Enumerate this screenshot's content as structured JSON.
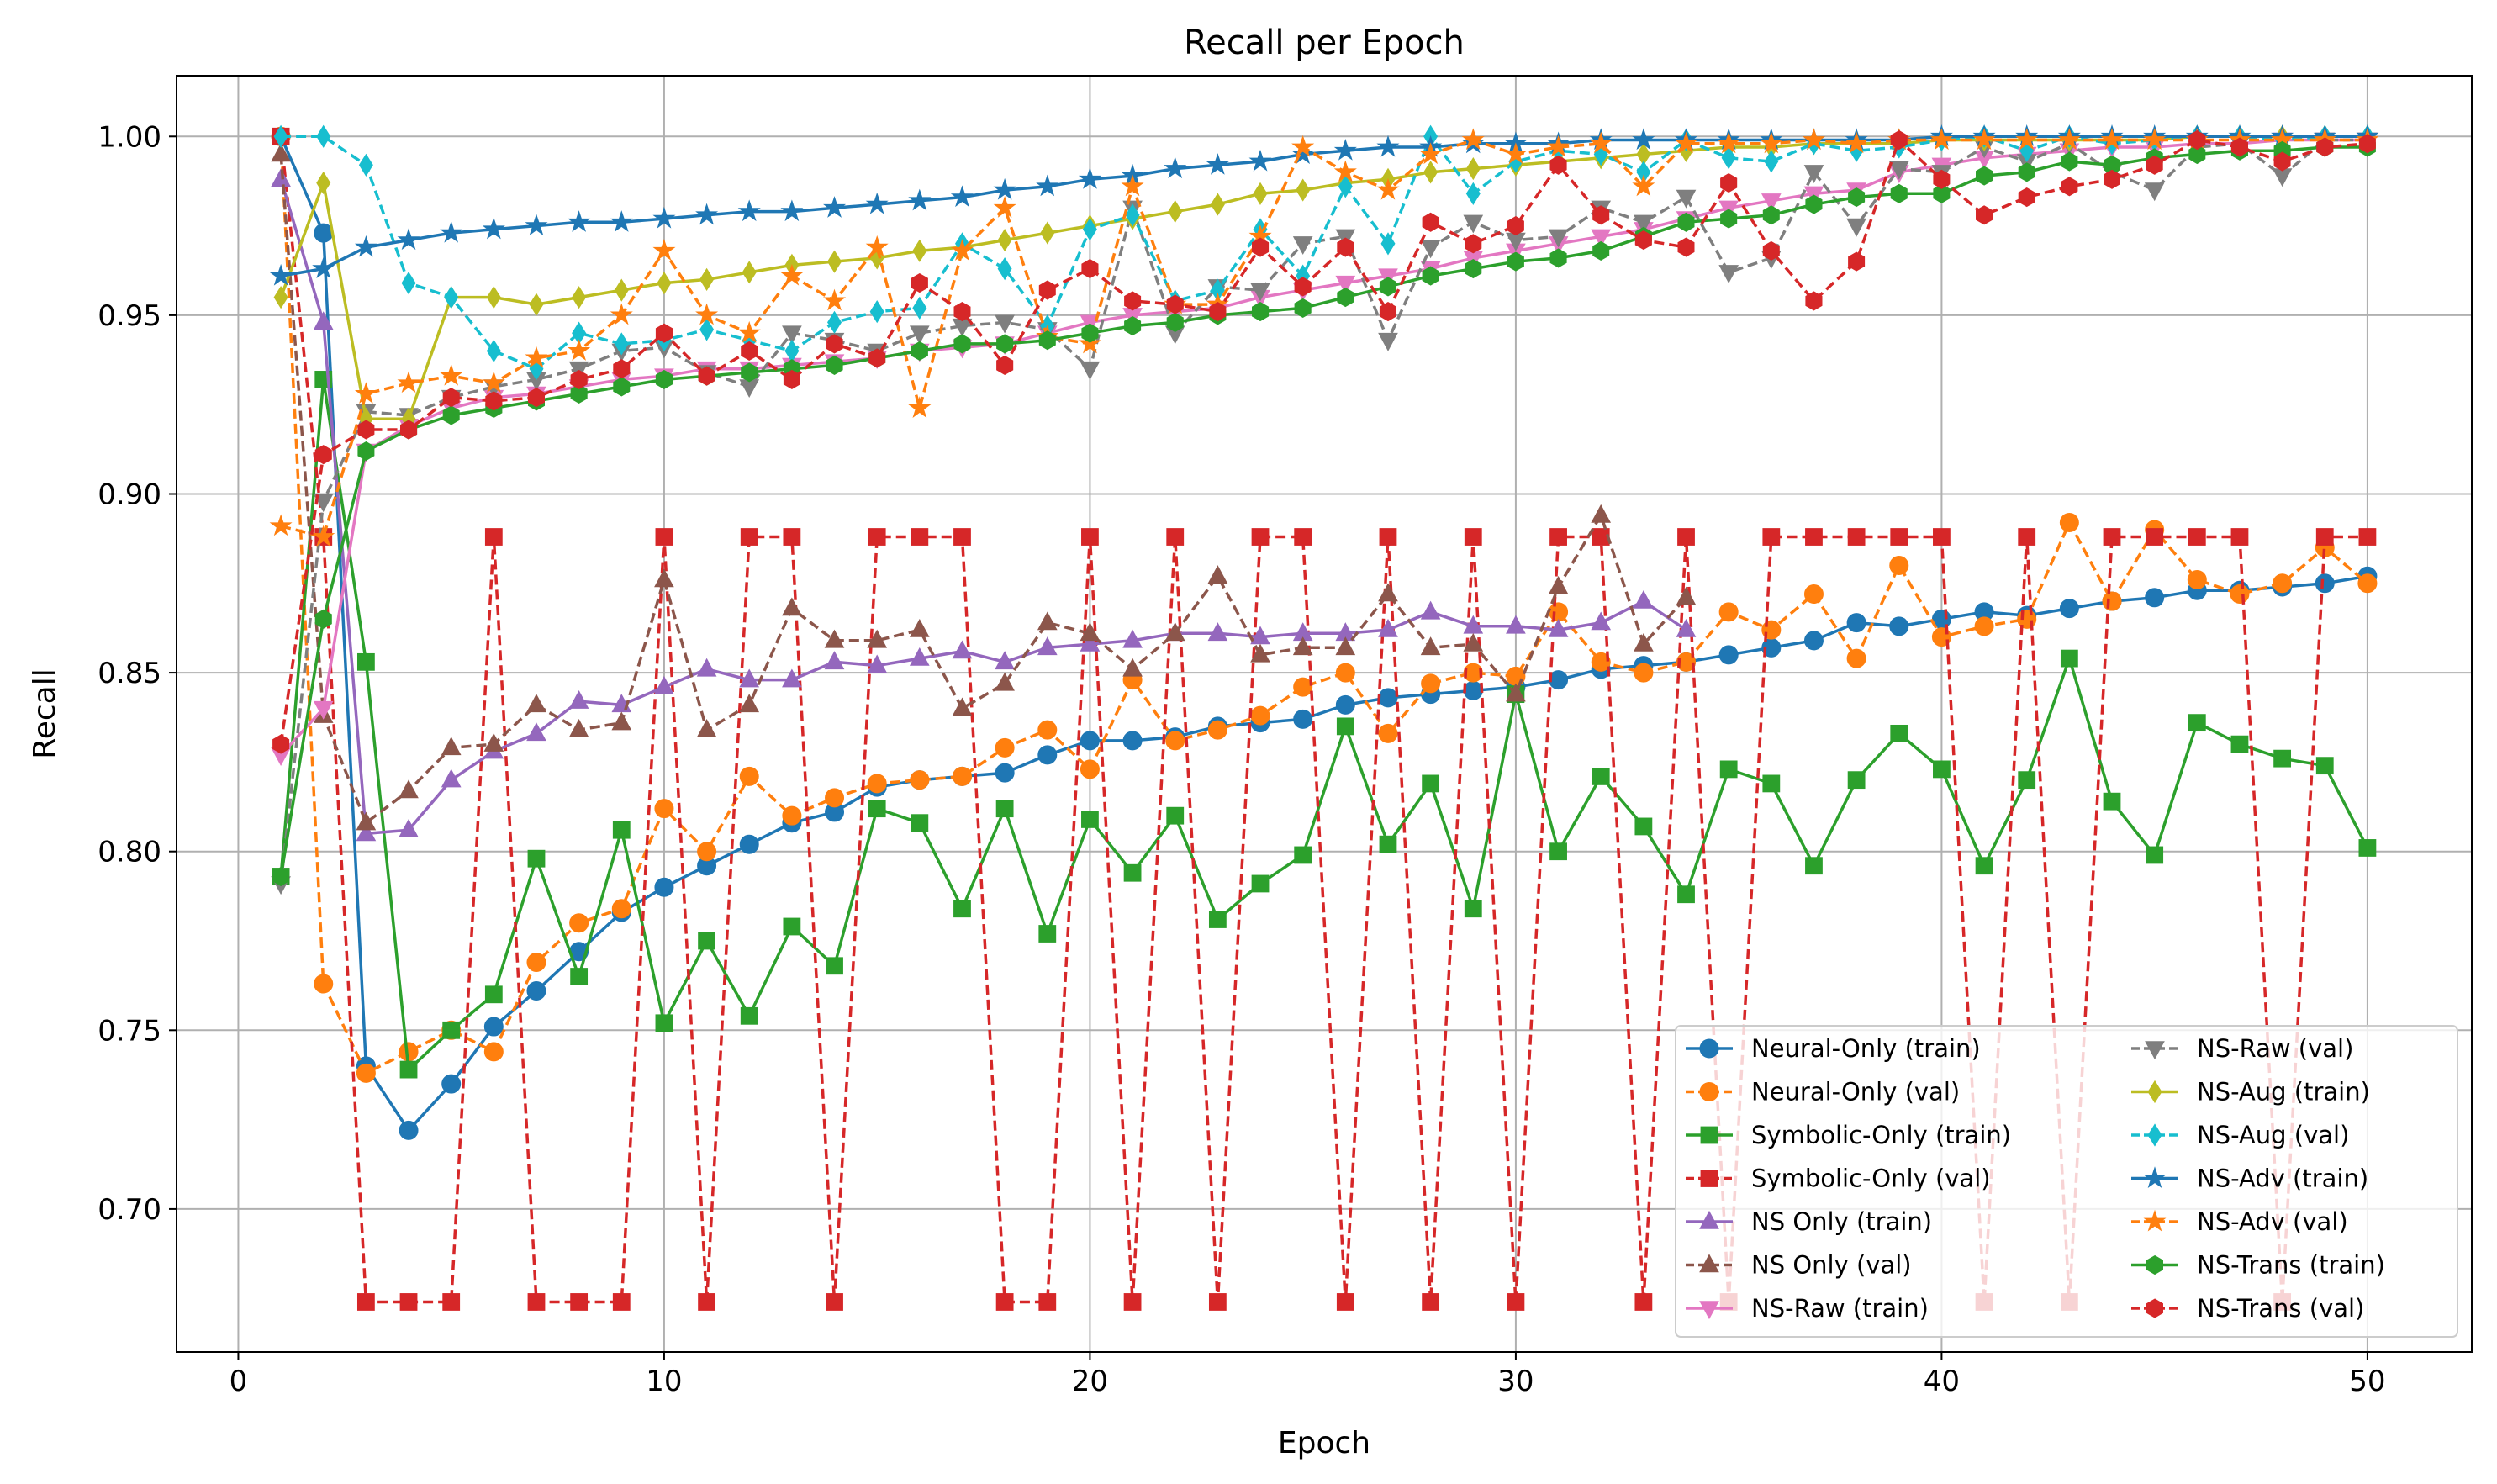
{
  "chart_data": {
    "type": "line",
    "title": "Recall per Epoch",
    "xlabel": "Epoch",
    "ylabel": "Recall",
    "xlim": [
      -1.45,
      52.45
    ],
    "ylim": [
      0.66,
      1.017
    ],
    "xticks": [
      0,
      10,
      20,
      30,
      40,
      50
    ],
    "yticks": [
      0.7,
      0.75,
      0.8,
      0.85,
      0.9,
      0.95,
      1.0
    ],
    "xtick_labels": [
      "0",
      "10",
      "20",
      "30",
      "40",
      "50"
    ],
    "ytick_labels": [
      "0.70",
      "0.75",
      "0.80",
      "0.85",
      "0.90",
      "0.95",
      "1.00"
    ],
    "grid": true,
    "legend_position": "lower right",
    "legend_columns": 2,
    "x": [
      1,
      2,
      3,
      4,
      5,
      6,
      7,
      8,
      9,
      10,
      11,
      12,
      13,
      14,
      15,
      16,
      17,
      18,
      19,
      20,
      21,
      22,
      23,
      24,
      25,
      26,
      27,
      28,
      29,
      30,
      31,
      32,
      33,
      34,
      35,
      36,
      37,
      38,
      39,
      40,
      41,
      42,
      43,
      44,
      45,
      46,
      47,
      48,
      49,
      50
    ],
    "series": [
      {
        "name": "Neural-Only (train)",
        "color": "#1f77b4",
        "dash": "solid",
        "marker": "circle",
        "values": [
          1.0,
          0.973,
          0.74,
          0.722,
          0.735,
          0.751,
          0.761,
          0.772,
          0.783,
          0.79,
          0.796,
          0.802,
          0.808,
          0.811,
          0.818,
          0.82,
          0.821,
          0.822,
          0.827,
          0.831,
          0.831,
          0.832,
          0.835,
          0.836,
          0.837,
          0.841,
          0.843,
          0.844,
          0.845,
          0.846,
          0.848,
          0.851,
          0.852,
          0.853,
          0.855,
          0.857,
          0.859,
          0.864,
          0.863,
          0.865,
          0.867,
          0.866,
          0.868,
          0.87,
          0.871,
          0.873,
          0.873,
          0.874,
          0.875,
          0.877
        ]
      },
      {
        "name": "Neural-Only (val)",
        "color": "#ff7f0e",
        "dash": "dashed",
        "marker": "circle",
        "values": [
          1.0,
          0.763,
          0.738,
          0.744,
          0.75,
          0.744,
          0.769,
          0.78,
          0.784,
          0.812,
          0.8,
          0.821,
          0.81,
          0.815,
          0.819,
          0.82,
          0.821,
          0.829,
          0.834,
          0.823,
          0.848,
          0.831,
          0.834,
          0.838,
          0.846,
          0.85,
          0.833,
          0.847,
          0.85,
          0.849,
          0.867,
          0.853,
          0.85,
          0.853,
          0.867,
          0.862,
          0.872,
          0.854,
          0.88,
          0.86,
          0.863,
          0.865,
          0.892,
          0.87,
          0.89,
          0.876,
          0.872,
          0.875,
          0.885,
          0.875
        ]
      },
      {
        "name": "Symbolic-Only (train)",
        "color": "#2ca02c",
        "dash": "solid",
        "marker": "square",
        "values": [
          0.793,
          0.932,
          0.853,
          0.739,
          0.75,
          0.76,
          0.798,
          0.765,
          0.806,
          0.752,
          0.775,
          0.754,
          0.779,
          0.768,
          0.812,
          0.808,
          0.784,
          0.812,
          0.777,
          0.809,
          0.794,
          0.81,
          0.781,
          0.791,
          0.799,
          0.835,
          0.802,
          0.819,
          0.784,
          0.844,
          0.8,
          0.821,
          0.807,
          0.788,
          0.823,
          0.819,
          0.796,
          0.82,
          0.833,
          0.823,
          0.796,
          0.82,
          0.854,
          0.814,
          0.799,
          0.836,
          0.83,
          0.826,
          0.824,
          0.801
        ]
      },
      {
        "name": "Symbolic-Only (val)",
        "color": "#d62728",
        "dash": "dashed",
        "marker": "square",
        "values": [
          1.0,
          0.888,
          0.674,
          0.674,
          0.674,
          0.888,
          0.674,
          0.674,
          0.674,
          0.888,
          0.674,
          0.888,
          0.888,
          0.674,
          0.888,
          0.888,
          0.888,
          0.674,
          0.674,
          0.888,
          0.674,
          0.888,
          0.674,
          0.888,
          0.888,
          0.674,
          0.888,
          0.674,
          0.888,
          0.674,
          0.888,
          0.888,
          0.674,
          0.888,
          0.674,
          0.888,
          0.888,
          0.888,
          0.888,
          0.888,
          0.674,
          0.888,
          0.674,
          0.888,
          0.888,
          0.888,
          0.888,
          0.674,
          0.888,
          0.888
        ]
      },
      {
        "name": "NS Only (train)",
        "color": "#9467bd",
        "dash": "solid",
        "marker": "triangle-up",
        "values": [
          0.988,
          0.948,
          0.805,
          0.806,
          0.82,
          0.828,
          0.833,
          0.842,
          0.841,
          0.846,
          0.851,
          0.848,
          0.848,
          0.853,
          0.852,
          0.854,
          0.856,
          0.853,
          0.857,
          0.858,
          0.859,
          0.861,
          0.861,
          0.86,
          0.861,
          0.861,
          0.862,
          0.867,
          0.863,
          0.863,
          0.862,
          0.864,
          0.87,
          0.862,
          null,
          null,
          null,
          null,
          null,
          null,
          null,
          null,
          null,
          null,
          null,
          null,
          null,
          null,
          null,
          null
        ]
      },
      {
        "name": "NS Only (val)",
        "color": "#8c564b",
        "dash": "dashed",
        "marker": "triangle-up",
        "values": [
          0.995,
          0.838,
          0.808,
          0.817,
          0.829,
          0.83,
          0.841,
          0.834,
          0.836,
          0.876,
          0.834,
          0.841,
          0.868,
          0.859,
          0.859,
          0.862,
          0.84,
          0.847,
          0.864,
          0.861,
          0.851,
          0.861,
          0.877,
          0.855,
          0.857,
          0.857,
          0.872,
          0.857,
          0.858,
          0.844,
          0.874,
          0.894,
          0.858,
          0.871,
          null,
          null,
          null,
          null,
          null,
          null,
          null,
          null,
          null,
          null,
          null,
          null,
          null,
          null,
          null,
          null
        ]
      },
      {
        "name": "NS-Raw (train)",
        "color": "#e377c2",
        "dash": "solid",
        "marker": "triangle-down",
        "values": [
          0.827,
          0.84,
          0.912,
          0.919,
          0.924,
          0.927,
          0.928,
          0.93,
          0.932,
          0.933,
          0.935,
          0.935,
          0.936,
          0.937,
          0.938,
          0.94,
          0.941,
          0.942,
          0.945,
          0.948,
          0.95,
          0.951,
          0.952,
          0.955,
          0.957,
          0.959,
          0.961,
          0.963,
          0.966,
          0.968,
          0.97,
          0.972,
          0.974,
          0.977,
          0.98,
          0.982,
          0.984,
          0.985,
          0.99,
          0.992,
          0.994,
          0.995,
          0.996,
          0.997,
          0.997,
          0.998,
          0.998,
          0.999,
          0.999,
          0.999
        ]
      },
      {
        "name": "NS-Raw (val)",
        "color": "#7f7f7f",
        "dash": "dashed",
        "marker": "triangle-down",
        "values": [
          0.791,
          0.898,
          0.923,
          0.922,
          0.927,
          0.93,
          0.932,
          0.935,
          0.94,
          0.941,
          0.934,
          0.93,
          0.945,
          0.943,
          0.94,
          0.945,
          0.947,
          0.948,
          0.946,
          0.935,
          0.98,
          0.945,
          0.958,
          0.957,
          0.97,
          0.972,
          0.943,
          0.969,
          0.976,
          0.971,
          0.972,
          0.98,
          0.976,
          0.983,
          0.962,
          0.966,
          0.99,
          0.975,
          0.991,
          0.99,
          0.997,
          0.993,
          0.998,
          0.99,
          0.985,
          0.997,
          0.998,
          0.989,
          0.999,
          0.999
        ]
      },
      {
        "name": "NS-Aug (train)",
        "color": "#bcbd22",
        "dash": "solid",
        "marker": "diamond",
        "values": [
          0.955,
          0.987,
          0.921,
          0.921,
          0.955,
          0.955,
          0.953,
          0.955,
          0.957,
          0.959,
          0.96,
          0.962,
          0.964,
          0.965,
          0.966,
          0.968,
          0.969,
          0.971,
          0.973,
          0.975,
          0.977,
          0.979,
          0.981,
          0.984,
          0.985,
          0.987,
          0.988,
          0.99,
          0.991,
          0.992,
          0.993,
          0.994,
          0.995,
          0.996,
          0.997,
          0.997,
          0.998,
          0.998,
          0.998,
          0.999,
          0.999,
          0.999,
          0.999,
          0.999,
          0.999,
          1.0,
          1.0,
          1.0,
          1.0,
          1.0
        ]
      },
      {
        "name": "NS-Aug (val)",
        "color": "#17becf",
        "dash": "dashed",
        "marker": "diamond",
        "values": [
          1.0,
          1.0,
          0.992,
          0.959,
          0.955,
          0.94,
          0.935,
          0.945,
          0.942,
          0.943,
          0.946,
          0.943,
          0.94,
          0.948,
          0.951,
          0.952,
          0.97,
          0.963,
          0.947,
          0.974,
          0.978,
          0.954,
          0.957,
          0.974,
          0.961,
          0.986,
          0.97,
          1.0,
          0.984,
          0.993,
          0.996,
          0.995,
          0.99,
          0.999,
          0.994,
          0.993,
          0.998,
          0.996,
          0.997,
          0.999,
          1.0,
          0.996,
          1.0,
          0.998,
          0.999,
          1.0,
          1.0,
          0.999,
          1.0,
          1.0
        ]
      },
      {
        "name": "NS-Adv (train)",
        "color": "#1f77b4",
        "dash": "solid",
        "marker": "star",
        "values": [
          0.961,
          0.963,
          0.969,
          0.971,
          0.973,
          0.974,
          0.975,
          0.976,
          0.976,
          0.977,
          0.978,
          0.979,
          0.979,
          0.98,
          0.981,
          0.982,
          0.983,
          0.985,
          0.986,
          0.988,
          0.989,
          0.991,
          0.992,
          0.993,
          0.995,
          0.996,
          0.997,
          0.997,
          0.998,
          0.998,
          0.998,
          0.999,
          0.999,
          0.999,
          0.999,
          0.999,
          0.999,
          0.999,
          0.999,
          1.0,
          1.0,
          1.0,
          1.0,
          1.0,
          1.0,
          1.0,
          1.0,
          1.0,
          1.0,
          1.0
        ]
      },
      {
        "name": "NS-Adv (val)",
        "color": "#ff7f0e",
        "dash": "dashed",
        "marker": "star",
        "values": [
          0.891,
          0.888,
          0.928,
          0.931,
          0.933,
          0.931,
          0.938,
          0.94,
          0.95,
          0.968,
          0.95,
          0.945,
          0.961,
          0.954,
          0.969,
          0.924,
          0.968,
          0.98,
          0.944,
          0.942,
          0.986,
          0.953,
          0.953,
          0.972,
          0.997,
          0.99,
          0.985,
          0.995,
          0.999,
          0.995,
          0.997,
          0.998,
          0.986,
          0.998,
          0.998,
          0.998,
          0.999,
          0.998,
          0.999,
          0.999,
          0.999,
          0.999,
          0.999,
          0.999,
          0.999,
          0.999,
          0.999,
          0.999,
          0.999,
          0.999
        ]
      },
      {
        "name": "NS-Trans (train)",
        "color": "#2ca02c",
        "dash": "solid",
        "marker": "hexagon",
        "values": [
          0.793,
          0.865,
          0.912,
          0.918,
          0.922,
          0.924,
          0.926,
          0.928,
          0.93,
          0.932,
          0.933,
          0.934,
          0.935,
          0.936,
          0.938,
          0.94,
          0.942,
          0.942,
          0.943,
          0.945,
          0.947,
          0.948,
          0.95,
          0.951,
          0.952,
          0.955,
          0.958,
          0.961,
          0.963,
          0.965,
          0.966,
          0.968,
          0.972,
          0.976,
          0.977,
          0.978,
          0.981,
          0.983,
          0.984,
          0.984,
          0.989,
          0.99,
          0.993,
          0.992,
          0.994,
          0.995,
          0.996,
          0.996,
          0.997,
          0.997
        ]
      },
      {
        "name": "NS-Trans (val)",
        "color": "#d62728",
        "dash": "dashed",
        "marker": "hexagon",
        "values": [
          0.83,
          0.911,
          0.918,
          0.918,
          0.927,
          0.926,
          0.927,
          0.932,
          0.935,
          0.945,
          0.933,
          0.94,
          0.932,
          0.942,
          0.938,
          0.959,
          0.951,
          0.936,
          0.957,
          0.963,
          0.954,
          0.953,
          0.951,
          0.969,
          0.958,
          0.969,
          0.951,
          0.976,
          0.97,
          0.975,
          0.992,
          0.978,
          0.971,
          0.969,
          0.987,
          0.968,
          0.954,
          0.965,
          0.999,
          0.988,
          0.978,
          0.983,
          0.986,
          0.988,
          0.992,
          0.999,
          0.997,
          0.993,
          0.997,
          0.998
        ]
      }
    ]
  }
}
